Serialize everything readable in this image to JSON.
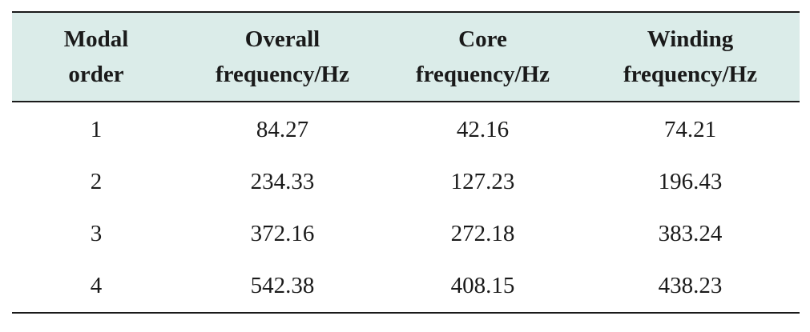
{
  "table": {
    "headers": [
      [
        "Modal",
        "order"
      ],
      [
        "Overall",
        "frequency/Hz"
      ],
      [
        "Core",
        "frequency/Hz"
      ],
      [
        "Winding",
        "frequency/Hz"
      ]
    ],
    "rows": [
      [
        "1",
        "84.27",
        "42.16",
        "74.21"
      ],
      [
        "2",
        "234.33",
        "127.23",
        "196.43"
      ],
      [
        "3",
        "372.16",
        "272.18",
        "383.24"
      ],
      [
        "4",
        "542.38",
        "408.15",
        "438.23"
      ]
    ],
    "header_bg": "#dbece9",
    "rule_color": "#1a1a1a"
  }
}
